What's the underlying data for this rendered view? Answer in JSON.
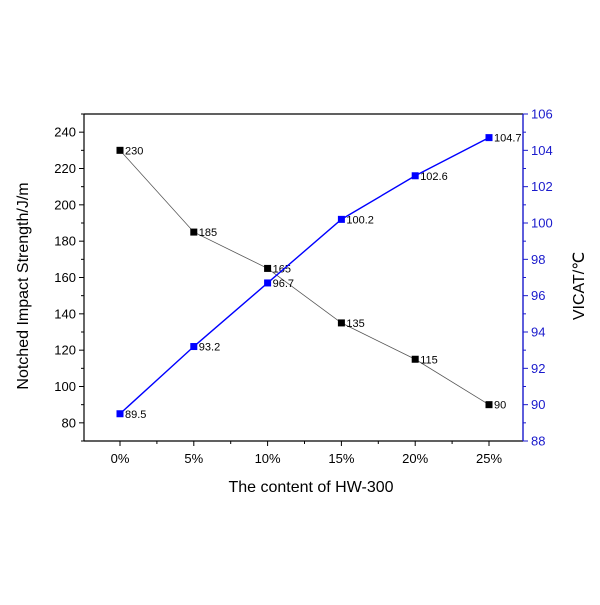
{
  "chart_data": {
    "type": "line",
    "xlabel": "The content of HW-300",
    "categories": [
      "0%",
      "5%",
      "10%",
      "15%",
      "20%",
      "25%"
    ],
    "y_left": {
      "label": "Notched Impact Strength/J/m",
      "range": [
        70,
        250
      ],
      "ticks": [
        80,
        100,
        120,
        140,
        160,
        180,
        200,
        220,
        240
      ]
    },
    "y_right": {
      "label": "VICAT/℃",
      "range": [
        88,
        106
      ],
      "ticks": [
        88,
        90,
        92,
        94,
        96,
        98,
        100,
        102,
        104,
        106
      ]
    },
    "series": [
      {
        "axis": "left",
        "color": "#000000",
        "values": [
          230,
          185,
          165,
          135,
          115,
          90
        ],
        "labels": [
          "230",
          "185",
          "165",
          "135",
          "115",
          "90"
        ]
      },
      {
        "axis": "right",
        "color": "#0000ff",
        "values": [
          89.5,
          93.2,
          96.7,
          100.2,
          102.6,
          104.7
        ],
        "labels": [
          "89.5",
          "93.2",
          "96.7",
          "100.2",
          "102.6",
          "104.7"
        ]
      }
    ],
    "grid": false,
    "legend": "none"
  }
}
